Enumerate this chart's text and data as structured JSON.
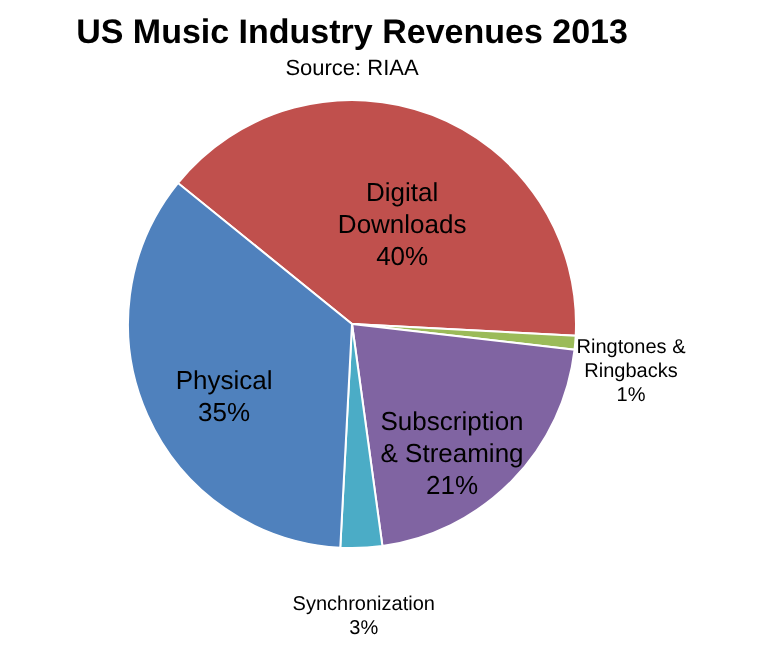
{
  "chart_data": {
    "type": "pie",
    "title": "US Music Industry Revenues 2013",
    "subtitle": "Source: RIAA",
    "categories": [
      "Digital Downloads",
      "Ringtones & Ringbacks",
      "Subscription & Streaming",
      "Synchronization",
      "Physical"
    ],
    "values": [
      40,
      1,
      21,
      3,
      35
    ],
    "value_labels": [
      "40%",
      "1%",
      "21%",
      "3%",
      "35%"
    ],
    "colors": [
      "#c0504d",
      "#9bbb59",
      "#8064a2",
      "#4bacc6",
      "#4f81bd"
    ],
    "legend": false
  }
}
